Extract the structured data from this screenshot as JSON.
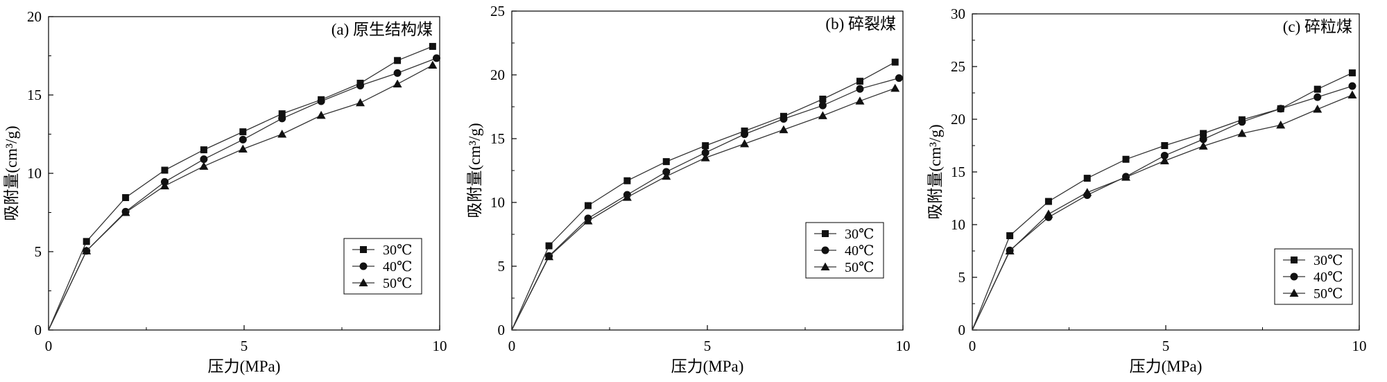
{
  "chart_data": [
    {
      "type": "line",
      "title": "(a) 原生结构煤",
      "xlabel": "压力(MPa)",
      "ylabel": "吸附量(cm³/g)",
      "xlim": [
        0,
        10
      ],
      "ylim": [
        0,
        20
      ],
      "xticks": [
        0,
        5,
        10
      ],
      "yticks": [
        0,
        5,
        10,
        15,
        20
      ],
      "grid": false,
      "legend": "bottom-right",
      "series": [
        {
          "name": "30℃",
          "marker": "square",
          "x": [
            0,
            0.97,
            1.97,
            2.97,
            3.97,
            4.97,
            5.97,
            6.97,
            7.97,
            8.92,
            9.82
          ],
          "y": [
            0,
            5.65,
            8.45,
            10.2,
            11.5,
            12.65,
            13.8,
            14.7,
            15.75,
            17.2,
            18.1
          ]
        },
        {
          "name": "40℃",
          "marker": "circle",
          "x": [
            0,
            0.97,
            1.97,
            2.97,
            3.97,
            4.97,
            5.97,
            6.97,
            7.97,
            8.92,
            9.92
          ],
          "y": [
            0,
            5.05,
            7.55,
            9.45,
            10.9,
            12.15,
            13.5,
            14.6,
            15.6,
            16.4,
            17.35
          ]
        },
        {
          "name": "50℃",
          "marker": "triangle",
          "x": [
            0,
            0.97,
            1.97,
            2.97,
            3.97,
            4.97,
            5.97,
            6.97,
            7.97,
            8.92,
            9.82
          ],
          "y": [
            0,
            5.05,
            7.5,
            9.2,
            10.45,
            11.55,
            12.5,
            13.7,
            14.5,
            15.7,
            16.9
          ]
        }
      ]
    },
    {
      "type": "line",
      "title": "(b) 碎裂煤",
      "xlabel": "压力(MPa)",
      "ylabel": "吸附量(cm³/g)",
      "xlim": [
        0,
        10
      ],
      "ylim": [
        0,
        25
      ],
      "xticks": [
        0,
        5,
        10
      ],
      "yticks": [
        0,
        5,
        10,
        15,
        20,
        25
      ],
      "grid": false,
      "legend": "right",
      "series": [
        {
          "name": "30℃",
          "marker": "square",
          "x": [
            0,
            0.95,
            1.95,
            2.95,
            3.95,
            4.95,
            5.95,
            6.95,
            7.95,
            8.9,
            9.8
          ],
          "y": [
            0,
            6.6,
            9.75,
            11.7,
            13.2,
            14.45,
            15.6,
            16.75,
            18.1,
            19.5,
            21.0
          ]
        },
        {
          "name": "40℃",
          "marker": "circle",
          "x": [
            0,
            0.95,
            1.95,
            2.95,
            3.95,
            4.95,
            5.95,
            6.95,
            7.95,
            8.9,
            9.9
          ],
          "y": [
            0,
            5.8,
            8.75,
            10.6,
            12.4,
            13.9,
            15.35,
            16.55,
            17.6,
            18.9,
            19.75
          ]
        },
        {
          "name": "50℃",
          "marker": "triangle",
          "x": [
            0,
            0.95,
            1.95,
            2.95,
            3.95,
            4.95,
            5.95,
            6.95,
            7.95,
            8.9,
            9.8
          ],
          "y": [
            0,
            5.75,
            8.55,
            10.4,
            12.05,
            13.5,
            14.6,
            15.7,
            16.8,
            17.95,
            18.95
          ]
        }
      ]
    },
    {
      "type": "line",
      "title": "(c) 碎粒煤",
      "xlabel": "压力(MPa)",
      "ylabel": "吸附量(cm³/g)",
      "xlim": [
        0,
        10
      ],
      "ylim": [
        0,
        30
      ],
      "xticks": [
        0,
        5,
        10
      ],
      "yticks": [
        0,
        5,
        10,
        15,
        20,
        25,
        30
      ],
      "grid": false,
      "legend": "bottom-right",
      "series": [
        {
          "name": "30℃",
          "marker": "square",
          "x": [
            0,
            0.97,
            1.97,
            2.97,
            3.97,
            4.97,
            5.97,
            6.97,
            7.97,
            8.92,
            9.82
          ],
          "y": [
            0,
            8.95,
            12.2,
            14.4,
            16.2,
            17.5,
            18.65,
            19.95,
            21.0,
            22.85,
            24.4
          ]
        },
        {
          "name": "40℃",
          "marker": "circle",
          "x": [
            0,
            0.97,
            1.97,
            2.97,
            3.97,
            4.97,
            5.97,
            6.97,
            7.97,
            8.92,
            9.82
          ],
          "y": [
            0,
            7.55,
            10.7,
            12.8,
            14.55,
            16.55,
            18.1,
            19.75,
            21.0,
            22.1,
            23.15
          ]
        },
        {
          "name": "50℃",
          "marker": "triangle",
          "x": [
            0,
            0.97,
            1.97,
            2.97,
            3.97,
            4.97,
            5.97,
            6.97,
            7.97,
            8.92,
            9.82
          ],
          "y": [
            0,
            7.5,
            11.0,
            13.05,
            14.5,
            16.05,
            17.45,
            18.65,
            19.45,
            20.95,
            22.3
          ]
        }
      ]
    }
  ]
}
